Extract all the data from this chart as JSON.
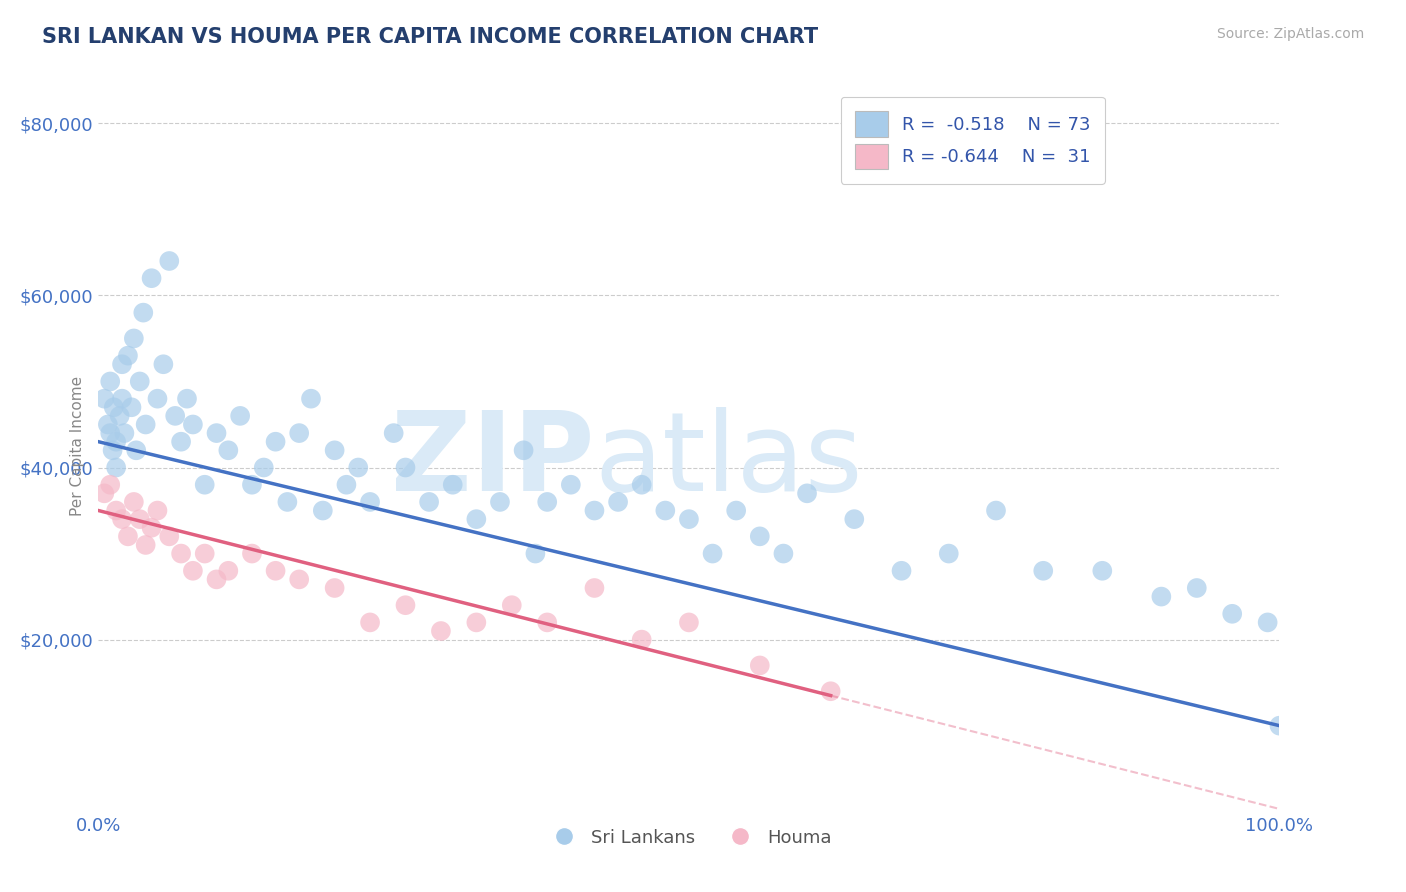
{
  "title": "SRI LANKAN VS HOUMA PER CAPITA INCOME CORRELATION CHART",
  "source": "Source: ZipAtlas.com",
  "ylabel": "Per Capita Income",
  "xlim": [
    0,
    100
  ],
  "ylim": [
    0,
    85000
  ],
  "yticks": [
    20000,
    40000,
    60000,
    80000
  ],
  "xtick_labels": [
    "0.0%",
    "100.0%"
  ],
  "ytick_labels": [
    "$20,000",
    "$40,000",
    "$60,000",
    "$80,000"
  ],
  "blue_color": "#A8CCEA",
  "pink_color": "#F5B8C8",
  "blue_line_color": "#4472C4",
  "pink_line_color": "#E06080",
  "title_color": "#243F6E",
  "axis_label_color": "#4472C4",
  "watermark_zip": "ZIP",
  "watermark_atlas": "atlas",
  "legend_r1": "R =  -0.518",
  "legend_n1": "N = 73",
  "legend_r2": "R = -0.644",
  "legend_n2": "N =  31",
  "blue_scatter_x": [
    0.5,
    0.8,
    1.0,
    1.0,
    1.2,
    1.3,
    1.5,
    1.5,
    1.8,
    2.0,
    2.0,
    2.2,
    2.5,
    2.8,
    3.0,
    3.2,
    3.5,
    3.8,
    4.0,
    4.5,
    5.0,
    5.5,
    6.0,
    6.5,
    7.0,
    7.5,
    8.0,
    9.0,
    10.0,
    11.0,
    12.0,
    13.0,
    14.0,
    15.0,
    16.0,
    17.0,
    18.0,
    19.0,
    20.0,
    21.0,
    22.0,
    23.0,
    25.0,
    26.0,
    28.0,
    30.0,
    32.0,
    34.0,
    36.0,
    37.0,
    38.0,
    40.0,
    42.0,
    44.0,
    46.0,
    48.0,
    50.0,
    52.0,
    54.0,
    56.0,
    58.0,
    60.0,
    64.0,
    68.0,
    72.0,
    76.0,
    80.0,
    85.0,
    90.0,
    93.0,
    96.0,
    99.0,
    100.0
  ],
  "blue_scatter_y": [
    48000,
    45000,
    50000,
    44000,
    42000,
    47000,
    40000,
    43000,
    46000,
    48000,
    52000,
    44000,
    53000,
    47000,
    55000,
    42000,
    50000,
    58000,
    45000,
    62000,
    48000,
    52000,
    64000,
    46000,
    43000,
    48000,
    45000,
    38000,
    44000,
    42000,
    46000,
    38000,
    40000,
    43000,
    36000,
    44000,
    48000,
    35000,
    42000,
    38000,
    40000,
    36000,
    44000,
    40000,
    36000,
    38000,
    34000,
    36000,
    42000,
    30000,
    36000,
    38000,
    35000,
    36000,
    38000,
    35000,
    34000,
    30000,
    35000,
    32000,
    30000,
    37000,
    34000,
    28000,
    30000,
    35000,
    28000,
    28000,
    25000,
    26000,
    23000,
    22000,
    10000
  ],
  "pink_scatter_x": [
    0.5,
    1.0,
    1.5,
    2.0,
    2.5,
    3.0,
    3.5,
    4.0,
    4.5,
    5.0,
    6.0,
    7.0,
    8.0,
    9.0,
    10.0,
    11.0,
    13.0,
    15.0,
    17.0,
    20.0,
    23.0,
    26.0,
    29.0,
    32.0,
    35.0,
    38.0,
    42.0,
    46.0,
    50.0,
    56.0,
    62.0
  ],
  "pink_scatter_y": [
    37000,
    38000,
    35000,
    34000,
    32000,
    36000,
    34000,
    31000,
    33000,
    35000,
    32000,
    30000,
    28000,
    30000,
    27000,
    28000,
    30000,
    28000,
    27000,
    26000,
    22000,
    24000,
    21000,
    22000,
    24000,
    22000,
    26000,
    20000,
    22000,
    17000,
    14000
  ],
  "blue_line_x0": 0,
  "blue_line_x1": 100,
  "blue_line_y0": 43000,
  "blue_line_y1": 10000,
  "pink_line_x0": 0,
  "pink_line_x1": 62,
  "pink_line_y0": 35000,
  "pink_line_y1": 13500,
  "pink_dash_x1": 100,
  "bg_color": "#FFFFFF",
  "grid_color": "#CCCCCC",
  "watermark_color": "#DAEAF7",
  "legend_text_color": "#3355AA",
  "bottom_legend_labels": [
    "Sri Lankans",
    "Houma"
  ]
}
